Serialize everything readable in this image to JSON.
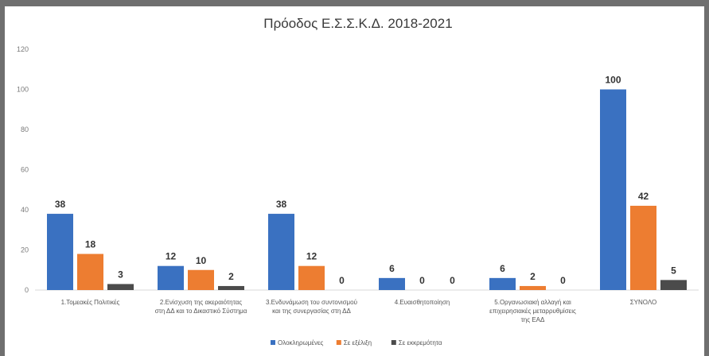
{
  "chart_data": {
    "type": "bar",
    "title": "Πρόοδος Ε.Σ.Σ.Κ.Δ. 2018-2021",
    "xlabel": "",
    "ylabel": "",
    "ylim": [
      0,
      120
    ],
    "yticks": [
      "0",
      "20",
      "40",
      "60",
      "80",
      "100",
      "120"
    ],
    "grid": false,
    "legend_position": "bottom",
    "categories": [
      [
        "1.Τομεακές Πολιτικές"
      ],
      [
        "2.Ενίσχυση της ακεραιότητας",
        "στη ΔΔ και το Δικαστικό Σύστημα"
      ],
      [
        "3.Ενδυνάμωση του συντονισμού",
        "και της συνεργασίας στη ΔΔ"
      ],
      [
        "4.Ευαισθητοποίηση"
      ],
      [
        "5.Οργανωσιακή αλλαγή και",
        "επιχειρησιακές μεταρρυθμίσεις",
        "της ΕΑΔ"
      ],
      [
        "ΣΥΝΟΛΟ"
      ]
    ],
    "series": [
      {
        "name": "Ολοκληρωμένες",
        "color": "#3a71c1",
        "values": [
          38,
          12,
          38,
          6,
          6,
          100
        ]
      },
      {
        "name": "Σε εξέλιξη",
        "color": "#ed7d31",
        "values": [
          18,
          10,
          12,
          0,
          2,
          42
        ]
      },
      {
        "name": "Σε εκκρεμότητα",
        "color": "#4b4b4b",
        "values": [
          3,
          2,
          0,
          0,
          0,
          5
        ]
      }
    ]
  }
}
